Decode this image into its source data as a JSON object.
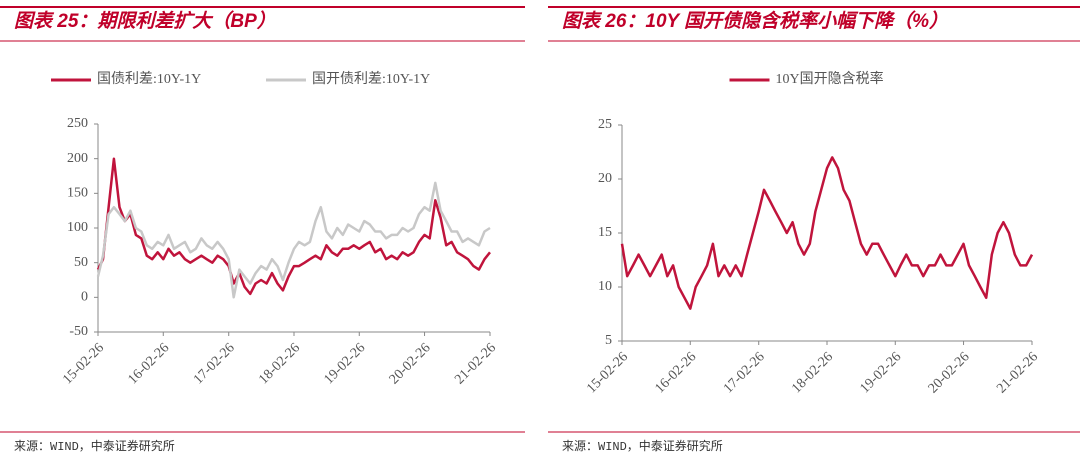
{
  "chart_data": [
    {
      "type": "line",
      "title": "图表 25：期限利差扩大（BP）",
      "source": "来源：WIND，中泰证券研究所",
      "x": [
        "15-02-26",
        "15-03-26",
        "15-04-26",
        "15-05-26",
        "15-06-26",
        "15-07-26",
        "15-08-26",
        "15-09-26",
        "15-10-26",
        "15-11-26",
        "15-12-26",
        "16-01-26",
        "16-02-26",
        "16-03-26",
        "16-04-26",
        "16-05-26",
        "16-06-26",
        "16-07-26",
        "16-08-26",
        "16-09-26",
        "16-10-26",
        "16-11-26",
        "16-12-26",
        "17-01-26",
        "17-02-26",
        "17-03-26",
        "17-04-26",
        "17-05-26",
        "17-06-26",
        "17-07-26",
        "17-08-26",
        "17-09-26",
        "17-10-26",
        "17-11-26",
        "17-12-26",
        "18-01-26",
        "18-02-26",
        "18-03-26",
        "18-04-26",
        "18-05-26",
        "18-06-26",
        "18-07-26",
        "18-08-26",
        "18-09-26",
        "18-10-26",
        "18-11-26",
        "18-12-26",
        "19-01-26",
        "19-02-26",
        "19-03-26",
        "19-04-26",
        "19-05-26",
        "19-06-26",
        "19-07-26",
        "19-08-26",
        "19-09-26",
        "19-10-26",
        "19-11-26",
        "19-12-26",
        "20-01-26",
        "20-02-26",
        "20-03-26",
        "20-04-26",
        "20-05-26",
        "20-06-26",
        "20-07-26",
        "20-08-26",
        "20-09-26",
        "20-10-26",
        "20-11-26",
        "20-12-26",
        "21-01-26",
        "21-02-26"
      ],
      "series": [
        {
          "name": "国债利差:10Y-1Y",
          "color": "#c0143c",
          "values": [
            40,
            55,
            130,
            200,
            130,
            110,
            120,
            90,
            85,
            60,
            55,
            65,
            55,
            70,
            60,
            65,
            55,
            50,
            55,
            60,
            55,
            50,
            60,
            55,
            45,
            20,
            35,
            15,
            5,
            20,
            25,
            20,
            35,
            20,
            10,
            30,
            45,
            45,
            50,
            55,
            60,
            55,
            75,
            65,
            60,
            70,
            70,
            75,
            70,
            75,
            80,
            65,
            70,
            55,
            60,
            55,
            65,
            60,
            65,
            80,
            90,
            85,
            140,
            115,
            75,
            80,
            65,
            60,
            55,
            45,
            40,
            55,
            65
          ]
        },
        {
          "name": "国开债利差:10Y-1Y",
          "color": "#c8c8c8",
          "values": [
            30,
            60,
            120,
            130,
            120,
            110,
            125,
            100,
            95,
            75,
            70,
            80,
            75,
            90,
            70,
            75,
            80,
            65,
            70,
            85,
            75,
            70,
            80,
            70,
            55,
            0,
            40,
            30,
            20,
            35,
            45,
            40,
            55,
            45,
            25,
            50,
            70,
            80,
            75,
            80,
            110,
            130,
            95,
            85,
            100,
            90,
            105,
            100,
            95,
            110,
            105,
            95,
            95,
            85,
            90,
            90,
            100,
            95,
            100,
            120,
            130,
            125,
            165,
            125,
            110,
            95,
            95,
            80,
            85,
            80,
            75,
            95,
            100
          ]
        }
      ],
      "xlim": [
        "15-02-26",
        "21-02-26"
      ],
      "xticks": [
        "15-02-26",
        "16-02-26",
        "17-02-26",
        "18-02-26",
        "19-02-26",
        "20-02-26",
        "21-02-26"
      ],
      "ylim": [
        -50,
        250
      ],
      "yticks": [
        -50,
        0,
        50,
        100,
        150,
        200,
        250
      ]
    },
    {
      "type": "line",
      "title": "图表 26：10Y 国开债隐含税率小幅下降（%）",
      "source": "来源：WIND，中泰证券研究所",
      "x": [
        "15-02-26",
        "15-03-26",
        "15-04-26",
        "15-05-26",
        "15-06-26",
        "15-07-26",
        "15-08-26",
        "15-09-26",
        "15-10-26",
        "15-11-26",
        "15-12-26",
        "16-01-26",
        "16-02-26",
        "16-03-26",
        "16-04-26",
        "16-05-26",
        "16-06-26",
        "16-07-26",
        "16-08-26",
        "16-09-26",
        "16-10-26",
        "16-11-26",
        "16-12-26",
        "17-01-26",
        "17-02-26",
        "17-03-26",
        "17-04-26",
        "17-05-26",
        "17-06-26",
        "17-07-26",
        "17-08-26",
        "17-09-26",
        "17-10-26",
        "17-11-26",
        "17-12-26",
        "18-01-26",
        "18-02-26",
        "18-03-26",
        "18-04-26",
        "18-05-26",
        "18-06-26",
        "18-07-26",
        "18-08-26",
        "18-09-26",
        "18-10-26",
        "18-11-26",
        "18-12-26",
        "19-01-26",
        "19-02-26",
        "19-03-26",
        "19-04-26",
        "19-05-26",
        "19-06-26",
        "19-07-26",
        "19-08-26",
        "19-09-26",
        "19-10-26",
        "19-11-26",
        "19-12-26",
        "20-01-26",
        "20-02-26",
        "20-03-26",
        "20-04-26",
        "20-05-26",
        "20-06-26",
        "20-07-26",
        "20-08-26",
        "20-09-26",
        "20-10-26",
        "20-11-26",
        "20-12-26",
        "21-01-26",
        "21-02-26"
      ],
      "series": [
        {
          "name": "10Y国开隐含税率",
          "color": "#c0143c",
          "values": [
            14,
            11,
            12,
            13,
            12,
            11,
            12,
            13,
            11,
            12,
            10,
            9,
            8,
            10,
            11,
            12,
            14,
            11,
            12,
            11,
            12,
            11,
            13,
            15,
            17,
            19,
            18,
            17,
            16,
            15,
            16,
            14,
            13,
            14,
            17,
            19,
            21,
            22,
            21,
            19,
            18,
            16,
            14,
            13,
            14,
            14,
            13,
            12,
            11,
            12,
            13,
            12,
            12,
            11,
            12,
            12,
            13,
            12,
            12,
            13,
            14,
            12,
            11,
            10,
            9,
            13,
            15,
            16,
            15,
            13,
            12,
            12,
            13
          ]
        }
      ],
      "xlim": [
        "15-02-26",
        "21-02-26"
      ],
      "xticks": [
        "15-02-26",
        "16-02-26",
        "17-02-26",
        "18-02-26",
        "19-02-26",
        "20-02-26",
        "21-02-26"
      ],
      "ylim": [
        5,
        25
      ],
      "yticks": [
        5,
        10,
        15,
        20,
        25
      ]
    }
  ]
}
